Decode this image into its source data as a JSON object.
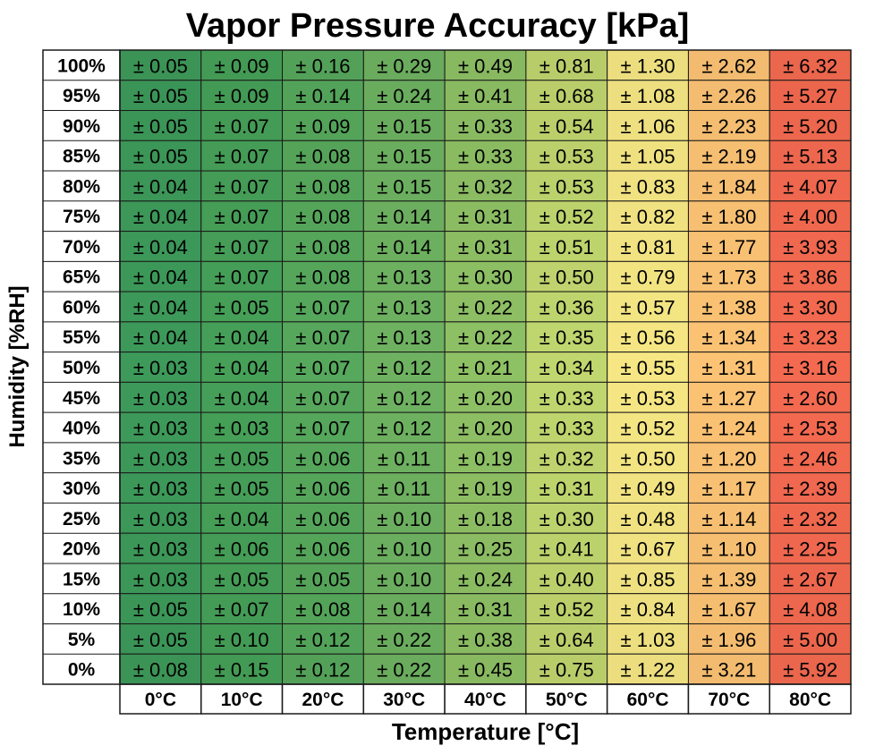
{
  "chart_data": {
    "type": "heatmap",
    "title": "Vapor Pressure Accuracy [kPa]",
    "xlabel": "Temperature [°C]",
    "ylabel": "Humidity [%RH]",
    "prefix": "± ",
    "columns": [
      "0°C",
      "10°C",
      "20°C",
      "30°C",
      "40°C",
      "50°C",
      "60°C",
      "70°C",
      "80°C"
    ],
    "rows": [
      "100%",
      "95%",
      "90%",
      "85%",
      "80%",
      "75%",
      "70%",
      "65%",
      "60%",
      "55%",
      "50%",
      "45%",
      "40%",
      "35%",
      "30%",
      "25%",
      "20%",
      "15%",
      "10%",
      "5%",
      "0%"
    ],
    "values": [
      [
        0.05,
        0.09,
        0.16,
        0.29,
        0.49,
        0.81,
        1.3,
        2.62,
        6.32
      ],
      [
        0.05,
        0.09,
        0.14,
        0.24,
        0.41,
        0.68,
        1.08,
        2.26,
        5.27
      ],
      [
        0.05,
        0.07,
        0.09,
        0.15,
        0.33,
        0.54,
        1.06,
        2.23,
        5.2
      ],
      [
        0.05,
        0.07,
        0.08,
        0.15,
        0.33,
        0.53,
        1.05,
        2.19,
        5.13
      ],
      [
        0.04,
        0.07,
        0.08,
        0.15,
        0.32,
        0.53,
        0.83,
        1.84,
        4.07
      ],
      [
        0.04,
        0.07,
        0.08,
        0.14,
        0.31,
        0.52,
        0.82,
        1.8,
        4.0
      ],
      [
        0.04,
        0.07,
        0.08,
        0.14,
        0.31,
        0.51,
        0.81,
        1.77,
        3.93
      ],
      [
        0.04,
        0.07,
        0.08,
        0.13,
        0.3,
        0.5,
        0.79,
        1.73,
        3.86
      ],
      [
        0.04,
        0.05,
        0.07,
        0.13,
        0.22,
        0.36,
        0.57,
        1.38,
        3.3
      ],
      [
        0.04,
        0.04,
        0.07,
        0.13,
        0.22,
        0.35,
        0.56,
        1.34,
        3.23
      ],
      [
        0.03,
        0.04,
        0.07,
        0.12,
        0.21,
        0.34,
        0.55,
        1.31,
        3.16
      ],
      [
        0.03,
        0.04,
        0.07,
        0.12,
        0.2,
        0.33,
        0.53,
        1.27,
        2.6
      ],
      [
        0.03,
        0.03,
        0.07,
        0.12,
        0.2,
        0.33,
        0.52,
        1.24,
        2.53
      ],
      [
        0.03,
        0.05,
        0.06,
        0.11,
        0.19,
        0.32,
        0.5,
        1.2,
        2.46
      ],
      [
        0.03,
        0.05,
        0.06,
        0.11,
        0.19,
        0.31,
        0.49,
        1.17,
        2.39
      ],
      [
        0.03,
        0.04,
        0.06,
        0.1,
        0.18,
        0.3,
        0.48,
        1.14,
        2.32
      ],
      [
        0.03,
        0.06,
        0.06,
        0.1,
        0.25,
        0.41,
        0.67,
        1.1,
        2.25
      ],
      [
        0.03,
        0.05,
        0.05,
        0.1,
        0.24,
        0.4,
        0.85,
        1.39,
        2.67
      ],
      [
        0.05,
        0.07,
        0.08,
        0.14,
        0.31,
        0.52,
        0.84,
        1.67,
        4.08
      ],
      [
        0.05,
        0.1,
        0.12,
        0.22,
        0.38,
        0.64,
        1.03,
        1.96,
        5.0
      ],
      [
        0.08,
        0.15,
        0.12,
        0.22,
        0.45,
        0.75,
        1.22,
        3.21,
        5.92
      ]
    ],
    "column_colors": [
      "#3d9a5a",
      "#46a058",
      "#56a85c",
      "#6eb261",
      "#8ec064",
      "#c0d66e",
      "#f6e784",
      "#fcc374",
      "#f46a50"
    ],
    "grid": true
  }
}
